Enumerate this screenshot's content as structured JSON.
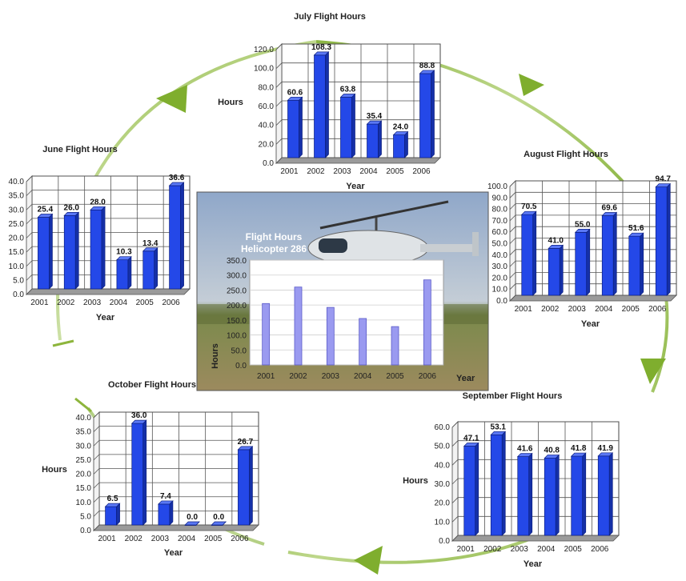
{
  "colors": {
    "bar_front": "#2448e8",
    "bar_side": "#1530a8",
    "bar_top": "#5a78f5",
    "arrow": "#8db53c",
    "center_bar": "#9a9af0"
  },
  "chart_data": [
    {
      "id": "july",
      "type": "bar",
      "title": "July Flight Hours",
      "categories": [
        "2001",
        "2002",
        "2003",
        "2004",
        "2005",
        "2006"
      ],
      "values": [
        60.6,
        108.3,
        63.8,
        35.4,
        24.0,
        88.8
      ],
      "value_labels": [
        "60.6",
        "108.3",
        "63.8",
        "35.4",
        "24.0",
        "88.8"
      ],
      "yticks": [
        "0.0",
        "20.0",
        "40.0",
        "60.0",
        "80.0",
        "100.0",
        "120.0"
      ],
      "ylim": [
        0,
        120
      ],
      "xlabel": "Year",
      "ylabel": "Hours",
      "grid": true
    },
    {
      "id": "june",
      "type": "bar",
      "title": "June Flight Hours",
      "categories": [
        "2001",
        "2002",
        "2003",
        "2004",
        "2005",
        "2006"
      ],
      "values": [
        25.4,
        26.0,
        28.0,
        10.3,
        13.4,
        36.6
      ],
      "value_labels": [
        "25.4",
        "26.0",
        "28.0",
        "10.3",
        "13.4",
        "36.6"
      ],
      "yticks": [
        "0.0",
        "5.0",
        "10.0",
        "15.0",
        "20.0",
        "25.0",
        "30.0",
        "35.0",
        "40.0"
      ],
      "ylim": [
        0,
        40
      ],
      "xlabel": "Year",
      "ylabel": "",
      "grid": true
    },
    {
      "id": "august",
      "type": "bar",
      "title": "August Flight Hours",
      "categories": [
        "2001",
        "2002",
        "2003",
        "2004",
        "2005",
        "2006"
      ],
      "values": [
        70.5,
        41.0,
        55.0,
        69.6,
        51.6,
        94.7
      ],
      "value_labels": [
        "70.5",
        "41.0",
        "55.0",
        "69.6",
        "51.6",
        "94.7"
      ],
      "yticks": [
        "0.0",
        "10.0",
        "20.0",
        "30.0",
        "40.0",
        "50.0",
        "60.0",
        "70.0",
        "80.0",
        "90.0",
        "100.0"
      ],
      "ylim": [
        0,
        100
      ],
      "xlabel": "Year",
      "ylabel": "",
      "grid": true
    },
    {
      "id": "october",
      "type": "bar",
      "title": "October Flight Hours",
      "categories": [
        "2001",
        "2002",
        "2003",
        "2004",
        "2005",
        "2006"
      ],
      "values": [
        6.5,
        36.0,
        7.4,
        0.0,
        0.0,
        26.7
      ],
      "value_labels": [
        "6.5",
        "36.0",
        "7.4",
        "0.0",
        "0.0",
        "26.7"
      ],
      "yticks": [
        "0.0",
        "5.0",
        "10.0",
        "15.0",
        "20.0",
        "25.0",
        "30.0",
        "35.0",
        "40.0"
      ],
      "ylim": [
        0,
        40
      ],
      "xlabel": "Year",
      "ylabel": "Hours",
      "grid": true
    },
    {
      "id": "september",
      "type": "bar",
      "title": "September Flight Hours",
      "categories": [
        "2001",
        "2002",
        "2003",
        "2004",
        "2005",
        "2006"
      ],
      "values": [
        47.1,
        53.1,
        41.6,
        40.8,
        41.8,
        41.9
      ],
      "value_labels": [
        "47.1",
        "53.1",
        "41.6",
        "40.8",
        "41.8",
        "41.9"
      ],
      "yticks": [
        "0.0",
        "10.0",
        "20.0",
        "30.0",
        "40.0",
        "50.0",
        "60.0"
      ],
      "ylim": [
        0,
        60
      ],
      "xlabel": "Year",
      "ylabel": "Hours",
      "grid": true
    },
    {
      "id": "center",
      "type": "bar",
      "title": "Flight Hours",
      "subtitle": "Helicopter 286",
      "categories": [
        "2001",
        "2002",
        "2003",
        "2004",
        "2005",
        "2006"
      ],
      "values": [
        205,
        260,
        192,
        155,
        128,
        284
      ],
      "yticks": [
        "0.0",
        "50.0",
        "100.0",
        "150.0",
        "200.0",
        "250.0",
        "300.0",
        "350.0"
      ],
      "ylim": [
        0,
        350
      ],
      "xlabel": "Year",
      "ylabel": "Hours",
      "grid": true
    }
  ]
}
